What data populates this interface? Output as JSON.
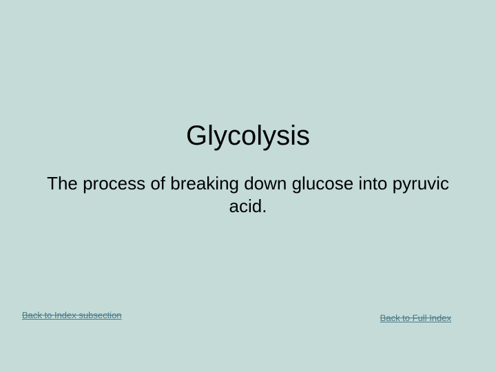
{
  "title": "Glycolysis",
  "subtitle": "The process of breaking down glucose into pyruvic acid.",
  "links": {
    "back_subsection": "Back to Index subsection",
    "back_full": "Back to Full  Index"
  },
  "colors": {
    "background": "#c4dbd7",
    "text": "#000000",
    "link": "#4a7a8a"
  },
  "typography": {
    "title_fontsize": 40,
    "subtitle_fontsize": 26,
    "link_fontsize": 13,
    "font_family": "Arial"
  }
}
